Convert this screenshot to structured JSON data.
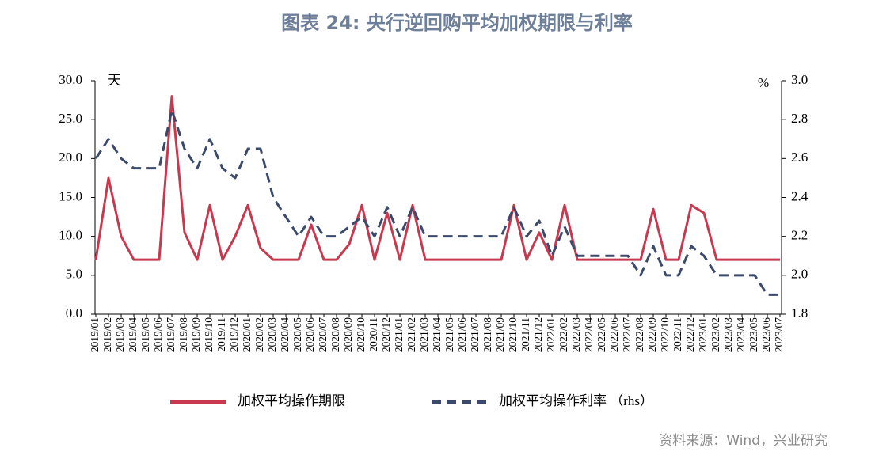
{
  "chart_data": {
    "type": "line",
    "title": "图表 24: 央行逆回购平均加权期限与利率",
    "y_unit": "天",
    "y2_unit": "%",
    "source": "资料来源：Wind，兴业研究",
    "categories": [
      "2019/01",
      "2019/02",
      "2019/03",
      "2019/04",
      "2019/05",
      "2019/06",
      "2019/07",
      "2019/08",
      "2019/09",
      "2019/10",
      "2019/11",
      "2019/12",
      "2020/01",
      "2020/02",
      "2020/03",
      "2020/04",
      "2020/05",
      "2020/06",
      "2020/07",
      "2020/08",
      "2020/09",
      "2020/10",
      "2020/11",
      "2020/12",
      "2021/01",
      "2021/02",
      "2021/03",
      "2021/04",
      "2021/05",
      "2021/06",
      "2021/07",
      "2021/08",
      "2021/09",
      "2021/10",
      "2021/11",
      "2021/12",
      "2022/01",
      "2022/02",
      "2022/03",
      "2022/04",
      "2022/05",
      "2022/06",
      "2022/07",
      "2022/08",
      "2022/09",
      "2022/10",
      "2022/11",
      "2022/12",
      "2023/01",
      "2023/02",
      "2023/03",
      "2023/04",
      "2023/05",
      "2023/06",
      "2023/07"
    ],
    "series": [
      {
        "name": "加权平均操作期限",
        "color": "#c8384e",
        "dash": false,
        "values": [
          7,
          17.5,
          10,
          7,
          7,
          7,
          28,
          10.5,
          7,
          14,
          7,
          10,
          14,
          8.5,
          7,
          7,
          7,
          11.5,
          7,
          7,
          9,
          14,
          7,
          13,
          7,
          14,
          7,
          7,
          7,
          7,
          7,
          7,
          7,
          14,
          7,
          10.5,
          7,
          14,
          7,
          7,
          7,
          7,
          7,
          7,
          13.5,
          7,
          7,
          14,
          13,
          7,
          7,
          7,
          7,
          7,
          7
        ]
      },
      {
        "name": "加权平均操作利率 （rhs）",
        "color": "#3b4a6b",
        "dash": true,
        "axis": "y2",
        "values": [
          2.6,
          2.7,
          2.6,
          2.55,
          2.55,
          2.55,
          2.85,
          2.65,
          2.55,
          2.7,
          2.55,
          2.5,
          2.65,
          2.65,
          2.4,
          2.3,
          2.2,
          2.3,
          2.2,
          2.2,
          2.25,
          2.3,
          2.2,
          2.35,
          2.2,
          2.35,
          2.2,
          2.2,
          2.2,
          2.2,
          2.2,
          2.2,
          2.2,
          2.35,
          2.2,
          2.28,
          2.1,
          2.25,
          2.1,
          2.1,
          2.1,
          2.1,
          2.1,
          2.0,
          2.15,
          2.0,
          2.0,
          2.15,
          2.1,
          2.0,
          2.0,
          2.0,
          2.0,
          1.9,
          1.9
        ]
      }
    ],
    "ylim": [
      0,
      30
    ],
    "yticks": [
      {
        "value": 0,
        "label": "0.0"
      },
      {
        "value": 5,
        "label": "5.0"
      },
      {
        "value": 10,
        "label": "10.0"
      },
      {
        "value": 15,
        "label": "15.0"
      },
      {
        "value": 20,
        "label": "20.0"
      },
      {
        "value": 25,
        "label": "25.0"
      },
      {
        "value": 30,
        "label": "30.0"
      }
    ],
    "y2lim": [
      1.8,
      3.0
    ],
    "y2ticks": [
      1.8,
      {
        "value": 2.0,
        "label": "2.0"
      },
      2.2,
      2.4,
      2.6,
      2.8,
      {
        "value": 3.0,
        "label": "3.0"
      }
    ]
  }
}
